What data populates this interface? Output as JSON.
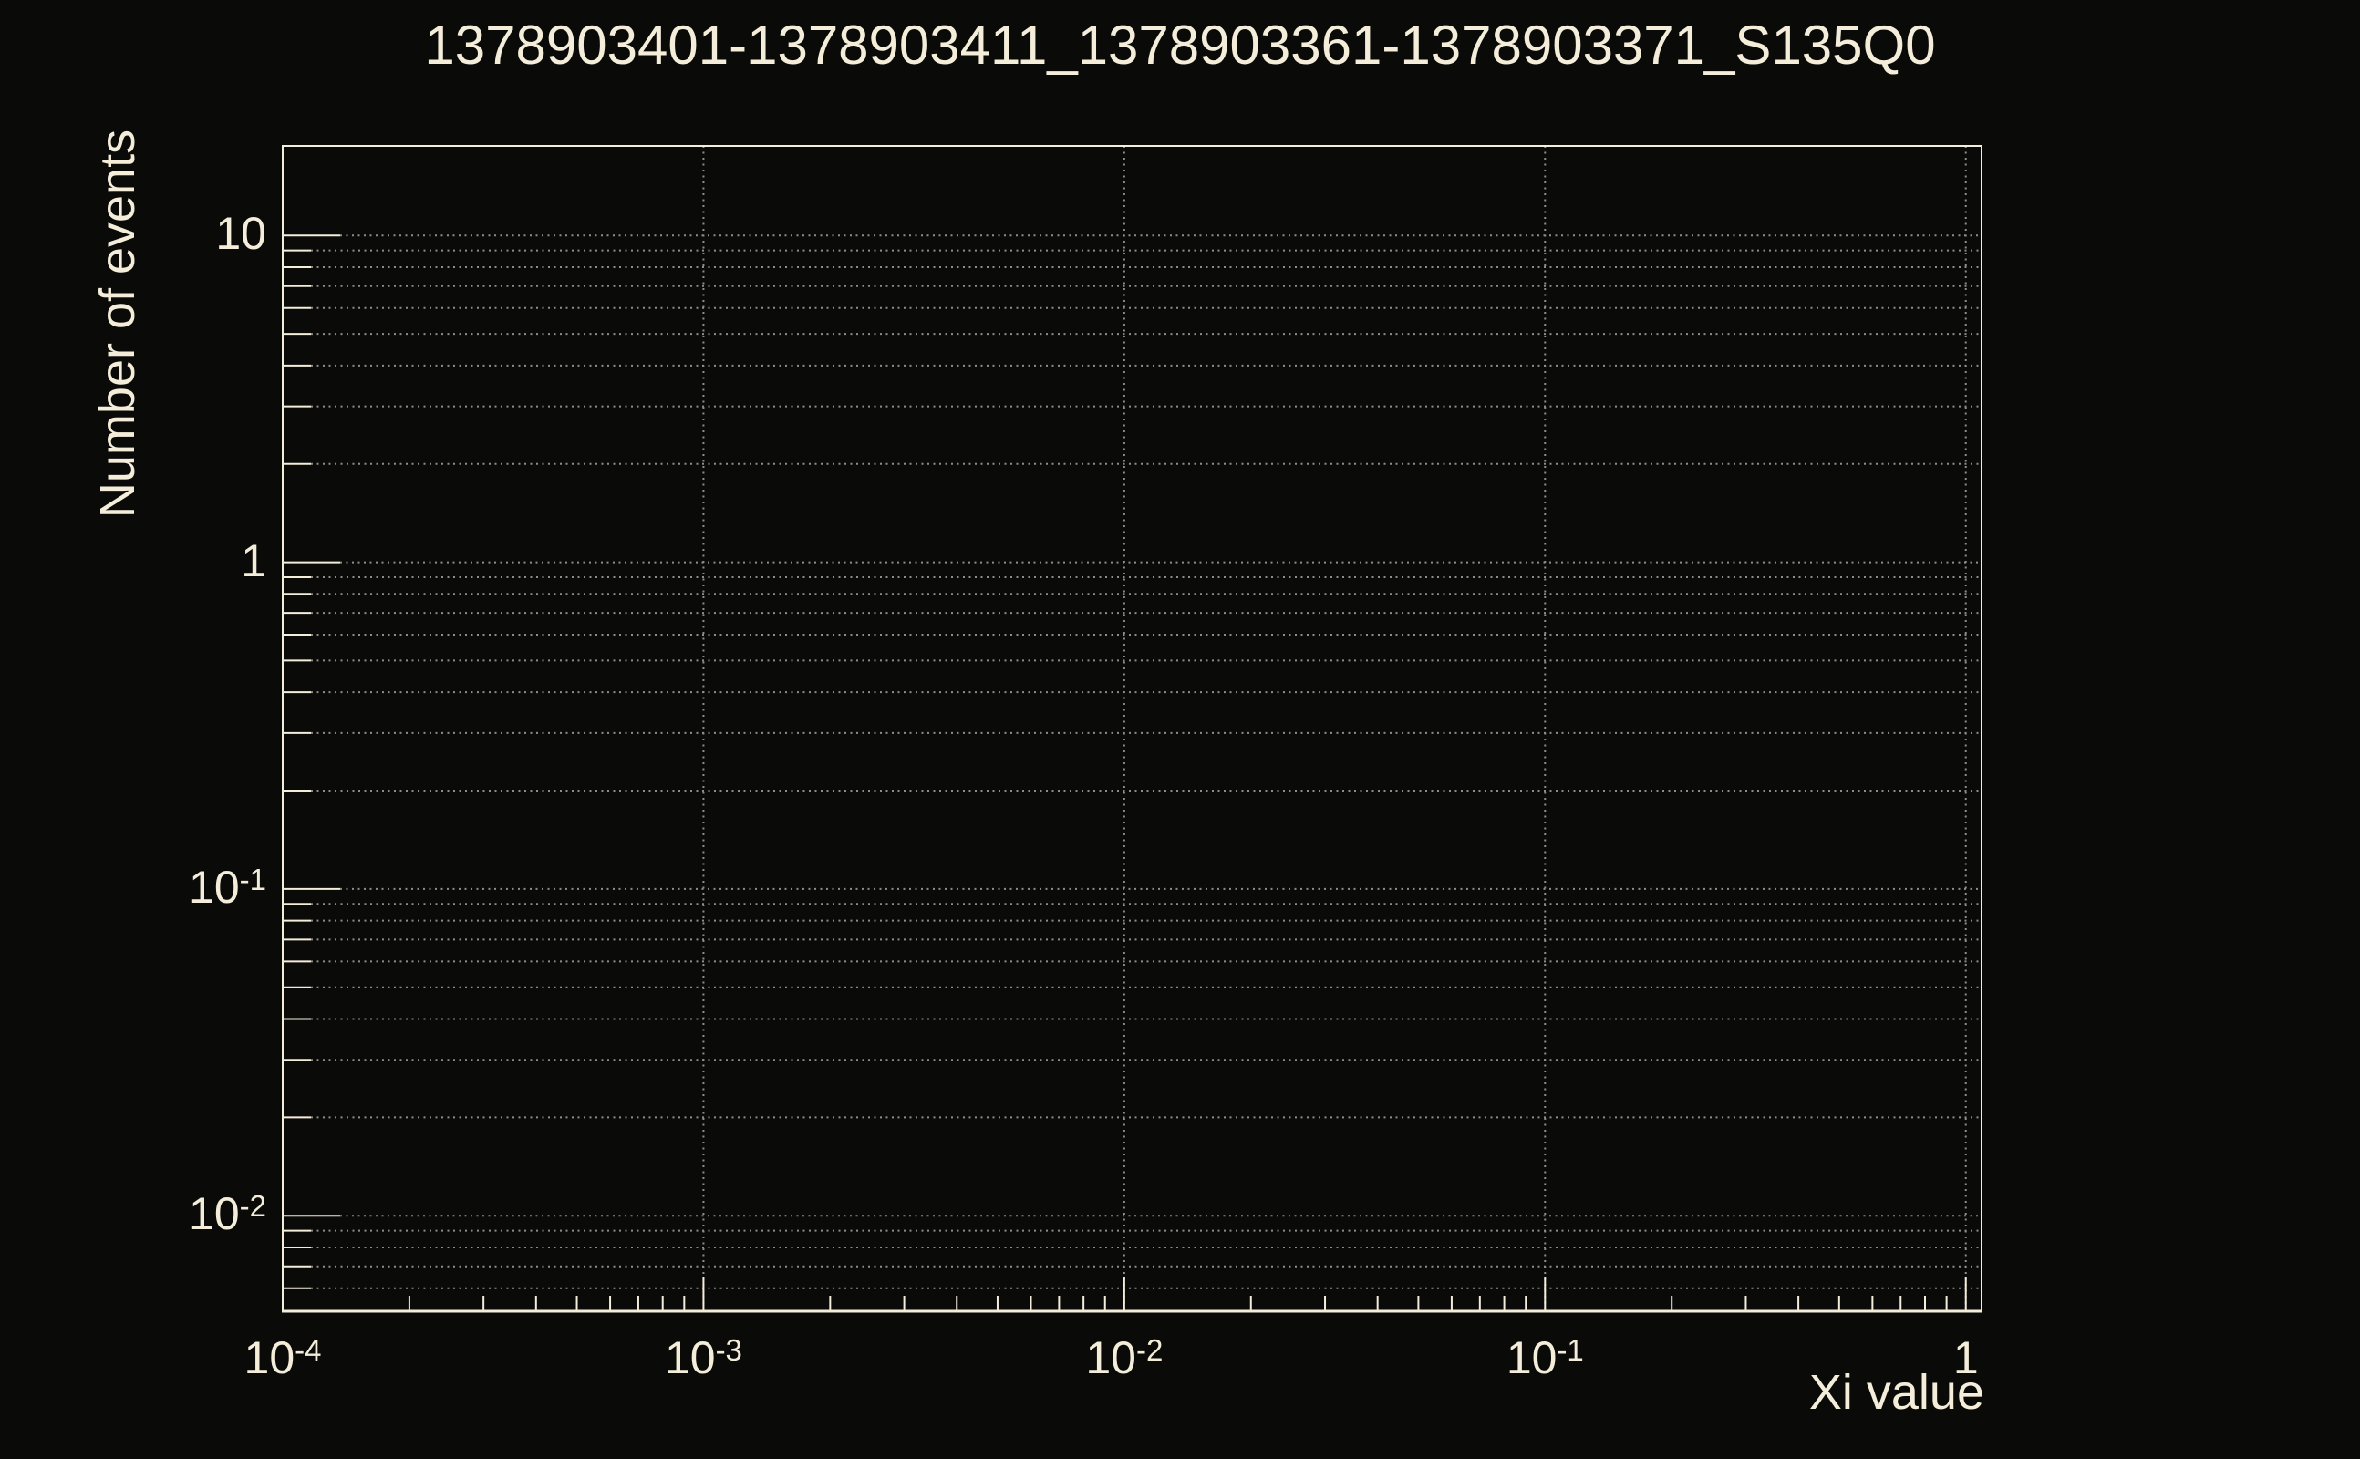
{
  "chart_data": {
    "type": "bar",
    "title": "1378903401-1378903411_1378903361-1378903371_S135Q0",
    "xlabel": "Xi value",
    "ylabel": "Number of events",
    "xscale": "log",
    "yscale": "log",
    "xlim": [
      0.0001,
      1.09
    ],
    "ylim": [
      0.0051,
      18.8
    ],
    "series": [],
    "x_ticks": [
      {
        "value": 0.0001,
        "base": "10",
        "exp": "-4"
      },
      {
        "value": 0.001,
        "base": "10",
        "exp": "-3"
      },
      {
        "value": 0.01,
        "base": "10",
        "exp": "-2"
      },
      {
        "value": 0.1,
        "base": "10",
        "exp": "-1"
      },
      {
        "value": 1,
        "base": "1",
        "exp": null
      }
    ],
    "y_ticks": [
      {
        "value": 10,
        "base": "10",
        "exp": null
      },
      {
        "value": 1,
        "base": "1",
        "exp": null
      },
      {
        "value": 0.1,
        "base": "10",
        "exp": "-1"
      },
      {
        "value": 0.01,
        "base": "10",
        "exp": "-2"
      }
    ],
    "grid": {
      "style": "dotted",
      "horizontal_lines": "at every y major and minor log tick",
      "vertical_lines": "at x major decade ticks only"
    },
    "legend": null
  },
  "colors": {
    "background": "#0a0a09",
    "foreground": "#f4edda",
    "grid": "#8e8e88"
  }
}
